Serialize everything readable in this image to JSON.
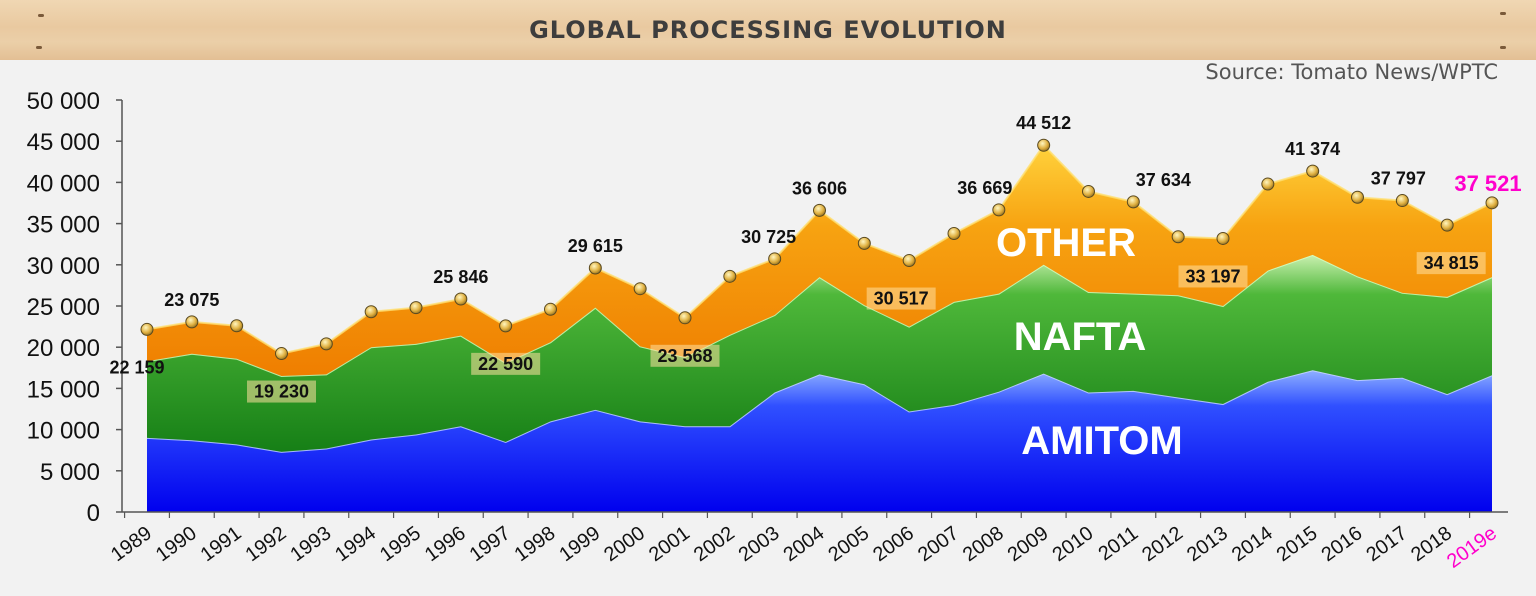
{
  "header": {
    "title": "GLOBAL PROCESSING EVOLUTION",
    "source": "Source: Tomato News/WPTC"
  },
  "colors": {
    "amitom": "#0a14f0",
    "nafta": "#1a8a1a",
    "other": "#f08a00",
    "highlight": "#ff00cc"
  },
  "chart_data": {
    "type": "area",
    "title": "",
    "xlabel": "",
    "ylabel": "",
    "ylim": [
      0,
      50000
    ],
    "yticks": [
      "0",
      "5 000",
      "10 000",
      "15 000",
      "20 000",
      "25 000",
      "30 000",
      "35 000",
      "40 000",
      "45 000",
      "50 000"
    ],
    "x": [
      "1989",
      "1990",
      "1991",
      "1992",
      "1993",
      "1994",
      "1995",
      "1996",
      "1997",
      "1998",
      "1999",
      "2000",
      "2001",
      "2002",
      "2003",
      "2004",
      "2005",
      "2006",
      "2007",
      "2008",
      "2009",
      "2010",
      "2011",
      "2012",
      "2013",
      "2014",
      "2015",
      "2016",
      "2017",
      "2018",
      "2019e"
    ],
    "stacked": true,
    "series": [
      {
        "name": "AMITOM",
        "values": [
          9000,
          8700,
          8200,
          7300,
          7700,
          8800,
          9400,
          10400,
          8500,
          11000,
          12400,
          11000,
          10400,
          10400,
          14500,
          16700,
          15500,
          12200,
          13000,
          14600,
          16800,
          14500,
          14700,
          13900,
          13100,
          15800,
          17200,
          16000,
          16300,
          14300,
          16600
        ]
      },
      {
        "name": "NAFTA",
        "values": [
          9300,
          10500,
          10400,
          9200,
          9000,
          11200,
          11000,
          11000,
          9600,
          9600,
          12400,
          9100,
          8400,
          11100,
          9400,
          11800,
          9600,
          10300,
          12500,
          11900,
          13200,
          12200,
          11800,
          12400,
          11900,
          13500,
          14000,
          12600,
          10300,
          11800,
          11900
        ]
      },
      {
        "name": "OTHER",
        "values": [
          3859,
          3875,
          4000,
          2730,
          3700,
          4300,
          4400,
          4446,
          4490,
          4000,
          4815,
          7000,
          4768,
          7100,
          6825,
          8106,
          7500,
          8017,
          8300,
          10169,
          14512,
          12200,
          11134,
          7100,
          8197,
          10500,
          10174,
          9600,
          11197,
          8715,
          9021
        ]
      }
    ],
    "totals": [
      22159,
      23075,
      22600,
      19230,
      20400,
      24300,
      24800,
      25846,
      22590,
      24600,
      29615,
      27100,
      23568,
      28600,
      30725,
      36606,
      32600,
      30517,
      33800,
      36669,
      44512,
      38900,
      37634,
      33400,
      33197,
      39800,
      41374,
      38200,
      37797,
      34815,
      37521
    ],
    "data_labels": [
      {
        "x": "1989",
        "text": "22 159"
      },
      {
        "x": "1990",
        "text": "23 075"
      },
      {
        "x": "1992",
        "text": "19 230"
      },
      {
        "x": "1996",
        "text": "25 846"
      },
      {
        "x": "1997",
        "text": "22 590"
      },
      {
        "x": "1999",
        "text": "29 615"
      },
      {
        "x": "2001",
        "text": "23 568"
      },
      {
        "x": "2003",
        "text": "30 725"
      },
      {
        "x": "2004",
        "text": "36 606"
      },
      {
        "x": "2006",
        "text": "30 517"
      },
      {
        "x": "2008",
        "text": "36 669"
      },
      {
        "x": "2009",
        "text": "44 512"
      },
      {
        "x": "2011",
        "text": "37 634"
      },
      {
        "x": "2013",
        "text": "33 197"
      },
      {
        "x": "2015",
        "text": "41 374"
      },
      {
        "x": "2017",
        "text": "37 797"
      },
      {
        "x": "2018",
        "text": "34 815"
      },
      {
        "x": "2019e",
        "text": "37 521",
        "highlight": true
      }
    ],
    "grid": false,
    "legend": "inline"
  }
}
